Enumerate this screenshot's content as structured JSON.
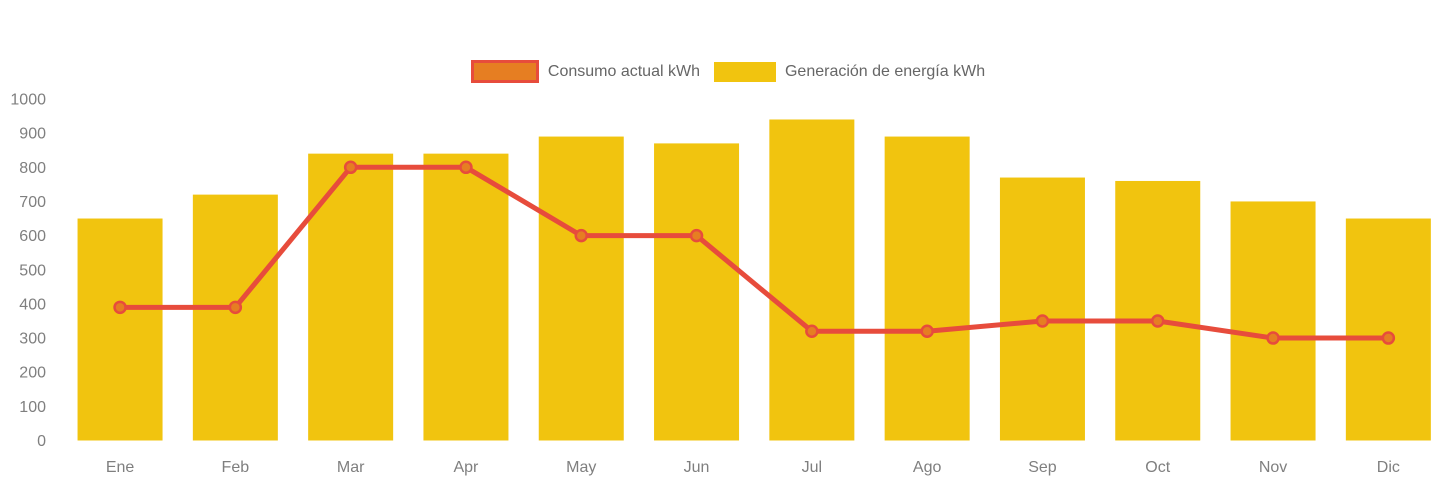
{
  "legend": {
    "items": [
      {
        "label": "Consumo actual kWh",
        "swatch_fill": "#e67e22",
        "swatch_border": "#e74c3c"
      },
      {
        "label": "Generación de energía kWh",
        "swatch_fill": "#f1c40f",
        "swatch_border": "#f1c40f"
      }
    ]
  },
  "chart_data": {
    "type": "combo-bar-line",
    "title": "",
    "xlabel": "",
    "ylabel": "",
    "categories": [
      "Ene",
      "Feb",
      "Mar",
      "Apr",
      "May",
      "Jun",
      "Jul",
      "Ago",
      "Sep",
      "Oct",
      "Nov",
      "Dic"
    ],
    "series": [
      {
        "name": "Consumo actual kWh",
        "type": "line",
        "color": "#e74c3c",
        "point_fill": "#e67e22",
        "values": [
          390,
          390,
          800,
          800,
          600,
          600,
          320,
          320,
          350,
          350,
          300,
          300
        ]
      },
      {
        "name": "Generación de energía kWh",
        "type": "bar",
        "color": "#f1c40f",
        "values": [
          650,
          720,
          840,
          840,
          890,
          870,
          940,
          890,
          770,
          760,
          700,
          650
        ]
      }
    ],
    "ylim": [
      0,
      1000
    ],
    "y_ticks": [
      0,
      100,
      200,
      300,
      400,
      500,
      600,
      700,
      800,
      900,
      1000
    ],
    "grid": false,
    "legend_position": "top",
    "axis_text_color": "#7f7f7f"
  }
}
